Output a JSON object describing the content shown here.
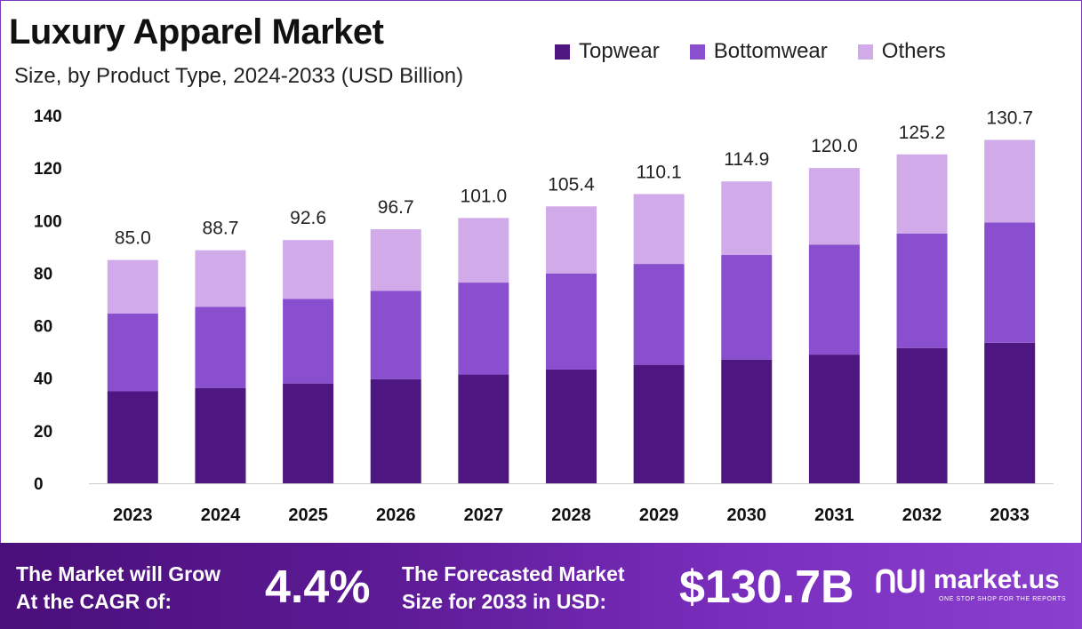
{
  "header": {
    "title": "Luxury Apparel Market",
    "subtitle": "Size, by Product Type, 2024-2033 (USD Billion)"
  },
  "colors": {
    "topwear": "#4e1680",
    "bottomwear": "#8a4fcf",
    "others": "#d1aaea",
    "banner": "#5c1a94"
  },
  "chart_data": {
    "type": "bar",
    "stacked": true,
    "title": "Luxury Apparel Market",
    "subtitle": "Size, by Product Type, 2024-2033 (USD Billion)",
    "xlabel": "",
    "ylabel": "",
    "ylim": [
      0,
      140
    ],
    "yticks": [
      0,
      20,
      40,
      60,
      80,
      100,
      120,
      140
    ],
    "grid": false,
    "legend_position": "top-right",
    "categories": [
      "2023",
      "2024",
      "2025",
      "2026",
      "2027",
      "2028",
      "2029",
      "2030",
      "2031",
      "2032",
      "2033"
    ],
    "series": [
      {
        "name": "Topwear",
        "values": [
          35.0,
          36.3,
          38.0,
          39.6,
          41.4,
          43.3,
          45.1,
          47.1,
          49.0,
          51.5,
          53.5
        ]
      },
      {
        "name": "Bottomwear",
        "values": [
          29.6,
          30.9,
          32.2,
          33.7,
          35.0,
          36.6,
          38.4,
          39.8,
          41.8,
          43.6,
          45.8
        ]
      },
      {
        "name": "Others",
        "values": [
          20.4,
          21.5,
          22.4,
          23.4,
          24.6,
          25.5,
          26.6,
          28.0,
          29.2,
          30.1,
          31.4
        ]
      }
    ],
    "totals": [
      "85.0",
      "88.7",
      "92.6",
      "96.7",
      "101.0",
      "105.4",
      "110.1",
      "114.9",
      "120.0",
      "125.2",
      "130.7"
    ]
  },
  "banner": {
    "cagr_text_line1": "The Market will Grow",
    "cagr_text_line2": "At the CAGR of:",
    "cagr_value": "4.4%",
    "forecast_text_line1": "The Forecasted Market",
    "forecast_text_line2": "Size for 2033 in USD:",
    "forecast_value": "$130.7B",
    "brand_name": "market.us",
    "brand_tagline": "ONE STOP SHOP FOR THE REPORTS",
    "brand_icon": "market-us-logo-icon"
  }
}
